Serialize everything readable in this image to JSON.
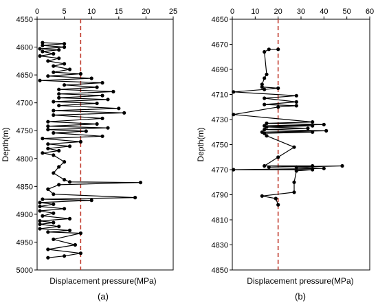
{
  "chart_data": [
    {
      "type": "line",
      "panel_label": "(a)",
      "xlabel": "Displacement pressure(MPa)",
      "ylabel": "Depth(m)",
      "xlim": [
        0,
        25
      ],
      "ylim": [
        4550,
        5000
      ],
      "y_inverted": true,
      "x_ticks": [
        "0",
        "5",
        "10",
        "15",
        "20",
        "25"
      ],
      "y_ticks": [
        "4550",
        "4600",
        "4650",
        "4700",
        "4750",
        "4800",
        "4850",
        "4900",
        "4950",
        "5000"
      ],
      "reference_line": {
        "x": 8,
        "color": "#c0392b",
        "style": "dashed"
      },
      "series": [
        {
          "color": "#000000",
          "points": [
            [
              1,
              4592
            ],
            [
              5,
              4594
            ],
            [
              1,
              4597
            ],
            [
              5,
              4600
            ],
            [
              0.5,
              4603
            ],
            [
              4,
              4605
            ],
            [
              1,
              4608
            ],
            [
              3,
              4612
            ],
            [
              0.5,
              4616
            ],
            [
              4,
              4620
            ],
            [
              2,
              4625
            ],
            [
              5,
              4630
            ],
            [
              3,
              4634
            ],
            [
              6,
              4640
            ],
            [
              3,
              4645
            ],
            [
              8,
              4648
            ],
            [
              2,
              4652
            ],
            [
              10,
              4656
            ],
            [
              0.5,
              4660
            ],
            [
              12,
              4664
            ],
            [
              5,
              4668
            ],
            [
              11,
              4672
            ],
            [
              4,
              4676
            ],
            [
              14,
              4680
            ],
            [
              4,
              4684
            ],
            [
              12,
              4687
            ],
            [
              4,
              4691
            ],
            [
              13,
              4694
            ],
            [
              3,
              4698
            ],
            [
              11,
              4701
            ],
            [
              4,
              4705
            ],
            [
              15,
              4710
            ],
            [
              3,
              4714
            ],
            [
              16,
              4718
            ],
            [
              3,
              4722
            ],
            [
              12,
              4728
            ],
            [
              2,
              4734
            ],
            [
              11,
              4738
            ],
            [
              2,
              4742
            ],
            [
              13,
              4745
            ],
            [
              2,
              4748
            ],
            [
              9,
              4751
            ],
            [
              3,
              4754
            ],
            [
              12,
              4760
            ],
            [
              1,
              4764
            ],
            [
              8,
              4770
            ],
            [
              2,
              4774
            ],
            [
              6,
              4778
            ],
            [
              2,
              4782
            ],
            [
              4,
              4786
            ],
            [
              1,
              4790
            ],
            [
              3,
              4794
            ],
            [
              5,
              4806
            ],
            [
              4,
              4815
            ],
            [
              3,
              4826
            ],
            [
              5,
              4838
            ],
            [
              6,
              4842
            ],
            [
              19,
              4843
            ],
            [
              4,
              4847
            ],
            [
              2,
              4855
            ],
            [
              3,
              4864
            ],
            [
              18,
              4870
            ],
            [
              1,
              4873
            ],
            [
              10,
              4875
            ],
            [
              0.5,
              4879
            ],
            [
              3,
              4882
            ],
            [
              0.5,
              4886
            ],
            [
              5,
              4890
            ],
            [
              0.5,
              4894
            ],
            [
              3,
              4898
            ],
            [
              1,
              4903
            ],
            [
              6,
              4908
            ],
            [
              0.5,
              4912
            ],
            [
              3,
              4915
            ],
            [
              0.5,
              4918
            ],
            [
              4,
              4922
            ],
            [
              0.5,
              4926
            ],
            [
              6,
              4929
            ],
            [
              2,
              4932
            ],
            [
              8,
              4934
            ],
            [
              3,
              4945
            ],
            [
              7,
              4955
            ],
            [
              2,
              4963
            ],
            [
              8,
              4970
            ],
            [
              5,
              4975
            ],
            [
              2,
              4978
            ]
          ]
        }
      ]
    },
    {
      "type": "line",
      "panel_label": "(b)",
      "xlabel": "Displacement pressure(MPa)",
      "ylabel": "Depth(m)",
      "xlim": [
        0,
        60
      ],
      "ylim": [
        4650,
        4850
      ],
      "y_inverted": true,
      "x_ticks": [
        "0",
        "10",
        "20",
        "30",
        "40",
        "50",
        "60"
      ],
      "y_ticks": [
        "4650",
        "4670",
        "4690",
        "4710",
        "4730",
        "4750",
        "4770",
        "4790",
        "4810",
        "4830",
        "4850"
      ],
      "reference_line": {
        "x": 20,
        "color": "#c0392b",
        "style": "dashed"
      },
      "series": [
        {
          "color": "#000000",
          "points": [
            [
              20,
              4674
            ],
            [
              16,
              4674
            ],
            [
              14,
              4676
            ],
            [
              15,
              4694
            ],
            [
              14,
              4697
            ],
            [
              13,
              4702
            ],
            [
              13,
              4704
            ],
            [
              20,
              4705
            ],
            [
              14,
              4706
            ],
            [
              0.5,
              4708
            ],
            [
              28,
              4711
            ],
            [
              14,
              4713
            ],
            [
              28,
              4716
            ],
            [
              14,
              4718
            ],
            [
              28,
              4719
            ],
            [
              20,
              4720
            ],
            [
              0.5,
              4726
            ],
            [
              35,
              4732
            ],
            [
              15,
              4733
            ],
            [
              40,
              4734
            ],
            [
              14,
              4735
            ],
            [
              35,
              4735
            ],
            [
              15,
              4736
            ],
            [
              33,
              4737
            ],
            [
              14,
              4738
            ],
            [
              41,
              4739
            ],
            [
              13,
              4740
            ],
            [
              35,
              4740
            ],
            [
              14,
              4741
            ],
            [
              15,
              4743
            ],
            [
              27,
              4752
            ],
            [
              20,
              4760
            ],
            [
              14,
              4767
            ],
            [
              35,
              4767
            ],
            [
              16,
              4768
            ],
            [
              48,
              4767
            ],
            [
              28,
              4768
            ],
            [
              40,
              4769
            ],
            [
              0.5,
              4770
            ],
            [
              35,
              4770
            ],
            [
              28,
              4771
            ],
            [
              27,
              4780
            ],
            [
              27,
              4788
            ],
            [
              13,
              4791
            ],
            [
              19,
              4793
            ],
            [
              20,
              4798
            ]
          ]
        }
      ]
    }
  ]
}
